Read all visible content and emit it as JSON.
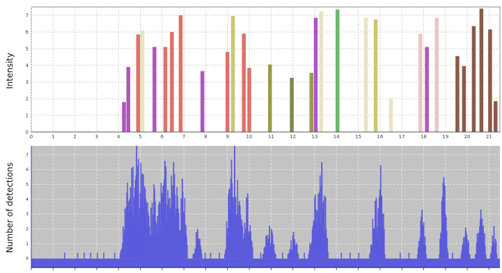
{
  "chart_data": [
    {
      "type": "bar",
      "title": "",
      "xlabel": "",
      "ylabel": "Intensity",
      "xlim": [
        0,
        21.5
      ],
      "ylim": [
        0,
        7.5
      ],
      "grid": true,
      "x_ticks": [
        "0",
        "1",
        "2",
        "3",
        "4",
        "5",
        "6",
        "7",
        "8",
        "9",
        "10",
        "11",
        "12",
        "13",
        "14",
        "15",
        "16",
        "17",
        "18",
        "19",
        "20",
        "21"
      ],
      "y_ticks": [
        "0",
        "1",
        "2",
        "3",
        "4",
        "5",
        "6",
        "7"
      ],
      "colors": {
        "plot_bg": "#ffffff",
        "grid": "#cfcfcf",
        "axis": "#888888"
      },
      "bars": [
        {
          "x": 4.25,
          "y": 1.8,
          "color": "#b055c0"
        },
        {
          "x": 4.45,
          "y": 3.9,
          "color": "#b055c0"
        },
        {
          "x": 4.9,
          "y": 5.85,
          "color": "#e07068"
        },
        {
          "x": 5.1,
          "y": 6.1,
          "color": "#e9e3c4"
        },
        {
          "x": 5.65,
          "y": 5.1,
          "color": "#b055c0"
        },
        {
          "x": 6.15,
          "y": 5.1,
          "color": "#e07068"
        },
        {
          "x": 6.45,
          "y": 6.0,
          "color": "#e07068"
        },
        {
          "x": 6.85,
          "y": 7.0,
          "color": "#e07068"
        },
        {
          "x": 7.85,
          "y": 3.65,
          "color": "#b055c0"
        },
        {
          "x": 9.0,
          "y": 4.8,
          "color": "#e07068"
        },
        {
          "x": 9.25,
          "y": 6.95,
          "color": "#c8c870"
        },
        {
          "x": 9.75,
          "y": 5.9,
          "color": "#e07068"
        },
        {
          "x": 10.0,
          "y": 3.85,
          "color": "#e07068"
        },
        {
          "x": 10.95,
          "y": 4.05,
          "color": "#9a9a4a"
        },
        {
          "x": 11.95,
          "y": 3.25,
          "color": "#7a8a50"
        },
        {
          "x": 12.85,
          "y": 3.55,
          "color": "#9a9a4a"
        },
        {
          "x": 13.05,
          "y": 6.85,
          "color": "#b055c0"
        },
        {
          "x": 13.3,
          "y": 7.25,
          "color": "#e9e3c4"
        },
        {
          "x": 14.05,
          "y": 7.35,
          "color": "#6ab86a"
        },
        {
          "x": 15.35,
          "y": 6.85,
          "color": "#e9e3c4"
        },
        {
          "x": 15.8,
          "y": 6.75,
          "color": "#c8c870"
        },
        {
          "x": 16.5,
          "y": 2.0,
          "color": "#e9e3c4"
        },
        {
          "x": 17.85,
          "y": 5.9,
          "color": "#e7c8c4"
        },
        {
          "x": 18.15,
          "y": 5.1,
          "color": "#b055c0"
        },
        {
          "x": 18.6,
          "y": 6.85,
          "color": "#e7c8c4"
        },
        {
          "x": 19.55,
          "y": 4.55,
          "color": "#8a5a48"
        },
        {
          "x": 19.85,
          "y": 3.95,
          "color": "#8a5a48"
        },
        {
          "x": 20.3,
          "y": 6.35,
          "color": "#8a5a48"
        },
        {
          "x": 20.65,
          "y": 7.4,
          "color": "#8a5a48"
        },
        {
          "x": 21.05,
          "y": 6.15,
          "color": "#8a5a48"
        },
        {
          "x": 21.3,
          "y": 1.85,
          "color": "#8a5a48"
        }
      ]
    },
    {
      "type": "bar",
      "title": "",
      "xlabel": "",
      "ylabel": "Number of detections",
      "xlim": [
        0,
        21.5
      ],
      "ylim": [
        -0.6,
        7.6
      ],
      "grid": true,
      "y_ticks": [
        "0",
        "1",
        "2",
        "3",
        "4",
        "5",
        "6",
        "7"
      ],
      "x_tick_positions": [
        0,
        1,
        2,
        3,
        4,
        5,
        6,
        7,
        8,
        9,
        10,
        11,
        12,
        13,
        14,
        15,
        16,
        17,
        18,
        19,
        20,
        21
      ],
      "colors": {
        "plot_bg": "#c3c3c3",
        "grid": "#e4e4e4",
        "bar": "#5b5bdc",
        "axis": "#5b5bdc"
      },
      "clusters": [
        {
          "center": 4.8,
          "width": 1.5,
          "peak": 7.6
        },
        {
          "center": 5.1,
          "width": 0.7,
          "peak": 5.2
        },
        {
          "center": 6.1,
          "width": 0.9,
          "peak": 6.6
        },
        {
          "center": 5.6,
          "width": 0.5,
          "peak": 5.0
        },
        {
          "center": 6.5,
          "width": 0.7,
          "peak": 6.5
        },
        {
          "center": 6.9,
          "width": 0.5,
          "peak": 5.4
        },
        {
          "center": 7.6,
          "width": 0.4,
          "peak": 2.0
        },
        {
          "center": 9.3,
          "width": 0.9,
          "peak": 7.6
        },
        {
          "center": 9.9,
          "width": 0.5,
          "peak": 4.4
        },
        {
          "center": 10.9,
          "width": 0.6,
          "peak": 2.2
        },
        {
          "center": 12.0,
          "width": 0.5,
          "peak": 1.8
        },
        {
          "center": 13.0,
          "width": 0.6,
          "peak": 4.3
        },
        {
          "center": 13.3,
          "width": 0.6,
          "peak": 6.5
        },
        {
          "center": 15.8,
          "width": 0.6,
          "peak": 4.1
        },
        {
          "center": 16.0,
          "width": 0.4,
          "peak": 6.3
        },
        {
          "center": 17.9,
          "width": 0.4,
          "peak": 3.3
        },
        {
          "center": 18.9,
          "width": 0.4,
          "peak": 5.5
        },
        {
          "center": 19.9,
          "width": 0.4,
          "peak": 2.1
        },
        {
          "center": 20.6,
          "width": 0.5,
          "peak": 3.3
        },
        {
          "center": 21.2,
          "width": 0.3,
          "peak": 2.2
        }
      ],
      "isolated": [
        {
          "x": 1.5,
          "y": 0.4
        },
        {
          "x": 2.1,
          "y": 0.4
        },
        {
          "x": 2.4,
          "y": 0.4
        },
        {
          "x": 2.7,
          "y": 0.4
        },
        {
          "x": 3.0,
          "y": 0.4
        },
        {
          "x": 3.3,
          "y": 0.4
        },
        {
          "x": 3.8,
          "y": 0.4
        },
        {
          "x": 7.95,
          "y": 0.4
        },
        {
          "x": 8.2,
          "y": 0.4
        },
        {
          "x": 8.6,
          "y": 0.4
        },
        {
          "x": 10.5,
          "y": 0.4
        },
        {
          "x": 11.5,
          "y": 0.4
        },
        {
          "x": 11.8,
          "y": 0.4
        },
        {
          "x": 12.5,
          "y": 0.4
        },
        {
          "x": 14.2,
          "y": 0.4
        },
        {
          "x": 14.6,
          "y": 0.4
        },
        {
          "x": 15.0,
          "y": 0.4
        },
        {
          "x": 16.9,
          "y": 0.4
        },
        {
          "x": 17.3,
          "y": 0.4
        },
        {
          "x": 19.3,
          "y": 0.4
        }
      ]
    }
  ]
}
